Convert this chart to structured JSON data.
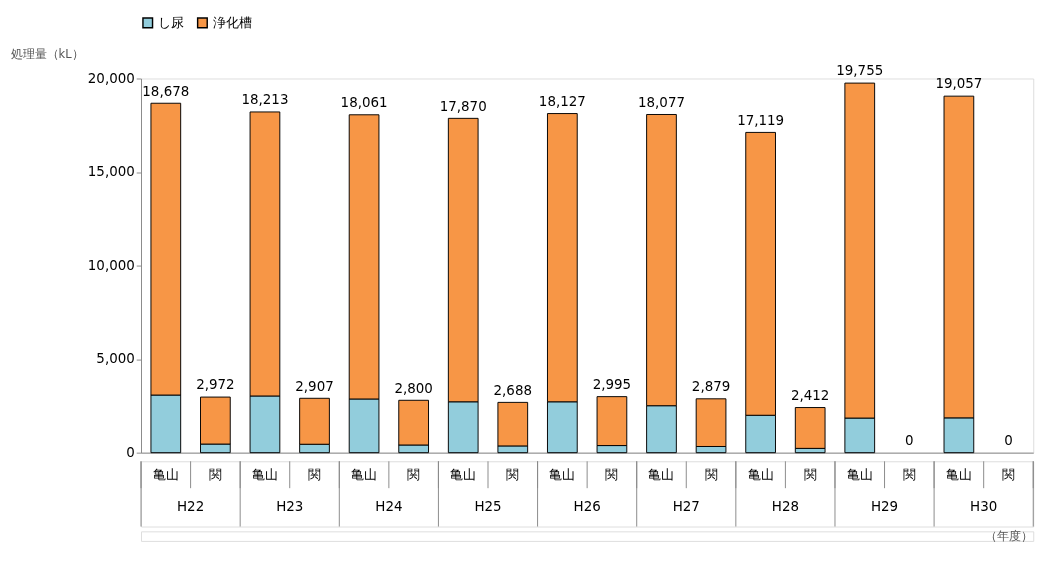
{
  "chart_data": {
    "type": "bar",
    "stacked": true,
    "ylabel": "処理量（kL）",
    "xlabel": "（年度）",
    "categories": [
      "亀山",
      "関",
      "亀山",
      "関",
      "亀山",
      "関",
      "亀山",
      "関",
      "亀山",
      "関",
      "亀山",
      "関",
      "亀山",
      "関",
      "亀山",
      "関",
      "亀山",
      "関"
    ],
    "annotations": [
      "H22",
      "H23",
      "H24",
      "H25",
      "H26",
      "H27",
      "H28",
      "H29",
      "H30"
    ],
    "series": [
      {
        "name": "し尿",
        "color": "#92cddc",
        "values": [
          3080,
          460,
          3030,
          450,
          2870,
          410,
          2720,
          360,
          2720,
          380,
          2510,
          330,
          2000,
          230,
          1850,
          0,
          1860,
          0
        ]
      },
      {
        "name": "浄化槽",
        "color": "#f79646",
        "values": [
          15598,
          2512,
          15183,
          2457,
          15191,
          2390,
          15150,
          2328,
          15407,
          2615,
          15567,
          2549,
          15119,
          2182,
          17905,
          0,
          17197,
          0
        ]
      }
    ],
    "totals": [
      "18,678",
      "2,972",
      "18,213",
      "2,907",
      "18,061",
      "2,800",
      "17,870",
      "2,688",
      "18,127",
      "2,995",
      "18,077",
      "2,879",
      "17,119",
      "2,412",
      "19,755",
      "0",
      "19,057",
      "0"
    ],
    "ylim": [
      0,
      20000
    ],
    "yticks": [
      {
        "value": 0,
        "label": "0"
      },
      {
        "value": 5000,
        "label": "5,000"
      },
      {
        "value": 10000,
        "label": "10,000"
      },
      {
        "value": 15000,
        "label": "15,000"
      },
      {
        "value": 20000,
        "label": "20,000"
      }
    ],
    "legend": "top",
    "grid": false
  }
}
